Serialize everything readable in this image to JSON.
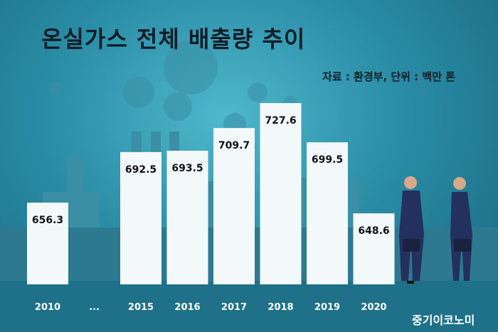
{
  "title": "온실가스 전체 배출량 추이",
  "source_note": "자료 : 환경부, 단위 : 백만 톤",
  "brand": "중기이코노미",
  "colors": {
    "bar": "#f3f9fb",
    "background_light": "#4fb8cc",
    "background_dark": "#17647c",
    "silhouette": "#3a8fa5",
    "silhouette_dark": "#2d7a90",
    "figure_suit": "#24305e",
    "text_dark": "#0d1b26"
  },
  "chart_data": {
    "type": "bar",
    "categories": [
      "2010",
      "...",
      "2015",
      "2016",
      "2017",
      "2018",
      "2019",
      "2020"
    ],
    "values": [
      656.3,
      null,
      692.5,
      693.5,
      709.7,
      727.6,
      699.5,
      648.6
    ],
    "value_labels": [
      "656.3",
      "",
      "692.5",
      "693.5",
      "709.7",
      "727.6",
      "699.5",
      "648.6"
    ],
    "unit": "백만 톤",
    "title": "온실가스 전체 배출량 추이",
    "xlabel": "",
    "ylabel": "",
    "ylim": [
      620,
      730
    ],
    "grid": false,
    "legend": "none"
  }
}
